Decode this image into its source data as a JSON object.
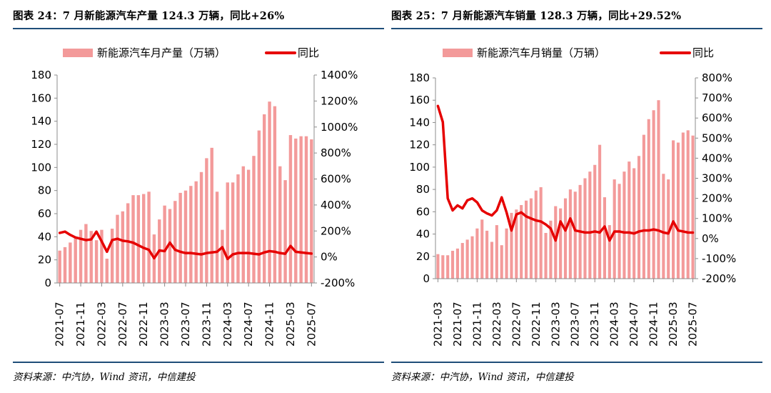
{
  "colors": {
    "bar": "#f39a9a",
    "line": "#e60000",
    "rule": "#1f4e79",
    "axis": "#8c8c8c"
  },
  "charts": [
    {
      "title": "图表 24：7 月新能源汽车产量 124.3 万辆，同比+26%",
      "source": "资料来源：中汽协，Wind 资讯，中信建投",
      "chart_data": {
        "type": "bar",
        "title": "图表 24：7 月新能源汽车产量 124.3 万辆，同比+26%",
        "legend": [
          "新能源汽车月产量（万辆）",
          "同比"
        ],
        "legend_position": "top",
        "x_start": "2021-07",
        "categories": [
          "2021-07",
          "2021-08",
          "2021-09",
          "2021-10",
          "2021-11",
          "2021-12",
          "2022-01",
          "2022-02",
          "2022-03",
          "2022-04",
          "2022-05",
          "2022-06",
          "2022-07",
          "2022-08",
          "2022-09",
          "2022-10",
          "2022-11",
          "2022-12",
          "2023-01",
          "2023-02",
          "2023-03",
          "2023-04",
          "2023-05",
          "2023-06",
          "2023-07",
          "2023-08",
          "2023-09",
          "2023-10",
          "2023-11",
          "2023-12",
          "2024-01",
          "2024-02",
          "2024-03",
          "2024-04",
          "2024-05",
          "2024-06",
          "2024-07",
          "2024-08",
          "2024-09",
          "2024-10",
          "2024-11",
          "2024-12",
          "2025-01",
          "2025-02",
          "2025-03",
          "2025-04",
          "2025-05",
          "2025-06",
          "2025-07"
        ],
        "x_tick_labels": [
          "2021-07",
          "2021-11",
          "2022-03",
          "2022-07",
          "2022-11",
          "2023-03",
          "2023-07",
          "2023-11",
          "2024-03",
          "2024-07",
          "2024-11",
          "2025-03",
          "2025-07"
        ],
        "series": [
          {
            "name": "新能源汽车月产量（万辆）",
            "kind": "bar",
            "axis": "left",
            "values": [
              28,
              31,
              35,
              40,
              46,
              51,
              45,
              37,
              46,
              21,
              47,
              59,
              62,
              69,
              76,
              76,
              77,
              79,
              42,
              55,
              67,
              64,
              71,
              78,
              80,
              84,
              88,
              96,
              108,
              117,
              79,
              46,
              87,
              87,
              94,
              101,
              98,
              110,
              132,
              146,
              157,
              153,
              101,
              89,
              128,
              125,
              127,
              127,
              124.3
            ]
          },
          {
            "name": "同比",
            "kind": "line",
            "axis": "right",
            "values": [
              185,
              195,
              170,
              150,
              140,
              130,
              135,
              195,
              120,
              40,
              130,
              140,
              125,
              120,
              110,
              90,
              70,
              55,
              -10,
              50,
              45,
              110,
              55,
              40,
              30,
              30,
              25,
              20,
              30,
              35,
              40,
              75,
              -15,
              20,
              30,
              30,
              30,
              25,
              20,
              35,
              45,
              40,
              30,
              25,
              85,
              40,
              35,
              30,
              26
            ]
          }
        ],
        "ylim_left": [
          0,
          180
        ],
        "yticks_left": [
          0,
          20,
          40,
          60,
          80,
          100,
          120,
          140,
          160,
          180
        ],
        "ylim_right": [
          -200,
          1400
        ],
        "yticks_right": [
          "-200%",
          "0%",
          "200%",
          "400%",
          "600%",
          "800%",
          "1000%",
          "1200%",
          "1400%"
        ],
        "grid": false
      }
    },
    {
      "title": "图表 25：7 月新能源汽车销量 128.3 万辆，同比+29.52%",
      "source": "资料来源：中汽协，Wind 资讯，中信建投",
      "chart_data": {
        "type": "bar",
        "title": "图表 25：7 月新能源汽车销量 128.3 万辆，同比+29.52%",
        "legend": [
          "新能源汽车月销量（万辆）",
          "同比"
        ],
        "legend_position": "top",
        "x_start": "2021-03",
        "categories": [
          "2021-03",
          "2021-04",
          "2021-05",
          "2021-06",
          "2021-07",
          "2021-08",
          "2021-09",
          "2021-10",
          "2021-11",
          "2021-12",
          "2022-01",
          "2022-02",
          "2022-03",
          "2022-04",
          "2022-05",
          "2022-06",
          "2022-07",
          "2022-08",
          "2022-09",
          "2022-10",
          "2022-11",
          "2022-12",
          "2023-01",
          "2023-02",
          "2023-03",
          "2023-04",
          "2023-05",
          "2023-06",
          "2023-07",
          "2023-08",
          "2023-09",
          "2023-10",
          "2023-11",
          "2023-12",
          "2024-01",
          "2024-02",
          "2024-03",
          "2024-04",
          "2024-05",
          "2024-06",
          "2024-07",
          "2024-08",
          "2024-09",
          "2024-10",
          "2024-11",
          "2024-12",
          "2025-01",
          "2025-02",
          "2025-03",
          "2025-04",
          "2025-05",
          "2025-06",
          "2025-07"
        ],
        "x_tick_labels": [
          "2021-03",
          "2021-07",
          "2021-11",
          "2022-03",
          "2022-07",
          "2022-11",
          "2023-03",
          "2023-07",
          "2023-11",
          "2024-03",
          "2024-07",
          "2024-11",
          "2025-03",
          "2025-07"
        ],
        "series": [
          {
            "name": "新能源汽车月销量（万辆）",
            "kind": "bar",
            "axis": "left",
            "values": [
              22,
              21,
              21,
              25,
              27,
              32,
              35,
              38,
              45,
              53,
              43,
              33,
              48,
              30,
              45,
              59,
              62,
              66,
              70,
              72,
              79,
              82,
              41,
              52,
              65,
              63,
              72,
              80,
              78,
              84,
              90,
              96,
              102,
              120,
              73,
              48,
              89,
              85,
              96,
              105,
              99,
              110,
              129,
              143,
              151,
              160,
              94,
              89,
              124,
              122,
              131,
              133,
              128.3
            ]
          },
          {
            "name": "同比",
            "kind": "line",
            "axis": "right",
            "values": [
              660,
              580,
              200,
              140,
              165,
              150,
              190,
              200,
              180,
              140,
              125,
              115,
              140,
              205,
              130,
              40,
              120,
              130,
              110,
              100,
              90,
              85,
              70,
              50,
              -10,
              85,
              40,
              100,
              40,
              35,
              30,
              30,
              35,
              30,
              60,
              -10,
              35,
              35,
              30,
              30,
              25,
              35,
              40,
              40,
              45,
              40,
              30,
              25,
              85,
              40,
              35,
              30,
              29.52
            ]
          }
        ],
        "ylim_left": [
          0,
          180
        ],
        "yticks_left": [
          0,
          20,
          40,
          60,
          80,
          100,
          120,
          140,
          160,
          180
        ],
        "ylim_right": [
          -200,
          800
        ],
        "yticks_right": [
          "-200%",
          "-100%",
          "0%",
          "100%",
          "200%",
          "300%",
          "400%",
          "500%",
          "600%",
          "700%",
          "800%"
        ],
        "grid": false
      }
    }
  ]
}
